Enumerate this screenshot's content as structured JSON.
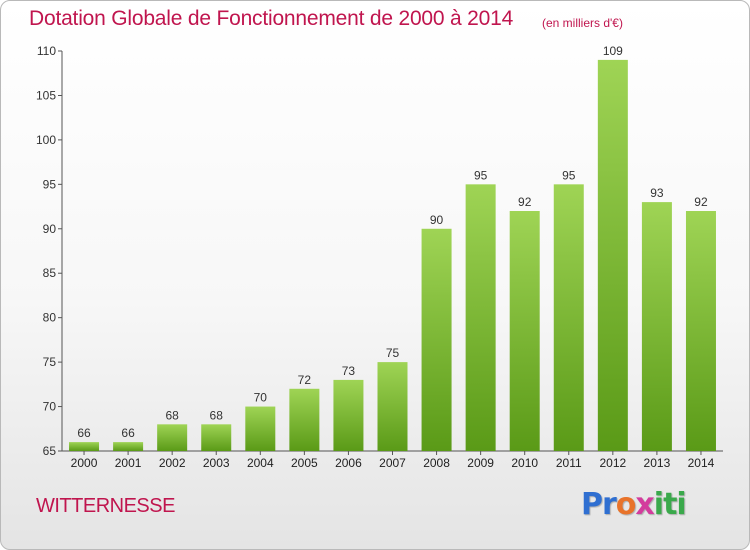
{
  "title": "Dotation Globale de Fonctionnement de 2000 à 2014",
  "unit_note": "(en milliers d'€)",
  "city": "WITTERNESSE",
  "logo": "Proxiti",
  "colors": {
    "title": "#c0154e",
    "bar_top": "#9fd455",
    "bar_bottom": "#5a9a17"
  },
  "chart_data": {
    "type": "bar",
    "categories": [
      "2000",
      "2001",
      "2002",
      "2003",
      "2004",
      "2005",
      "2006",
      "2007",
      "2008",
      "2009",
      "2010",
      "2011",
      "2012",
      "2013",
      "2014"
    ],
    "values": [
      66,
      66,
      68,
      68,
      70,
      72,
      73,
      75,
      90,
      95,
      92,
      95,
      109,
      93,
      92
    ],
    "ylim": [
      65,
      110
    ],
    "yticks": [
      65,
      70,
      75,
      80,
      85,
      90,
      95,
      100,
      105,
      110
    ],
    "grid": false,
    "legend": "none"
  }
}
